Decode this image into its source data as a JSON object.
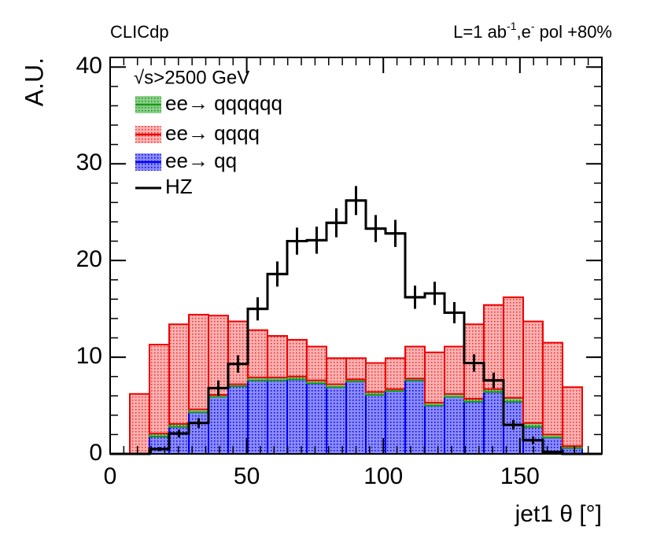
{
  "chart_data": {
    "type": "stacked_histogram",
    "top_left_label": "CLICdp",
    "top_right_label": [
      "L=1 ab",
      "-1",
      ",e",
      "-",
      " pol +80%"
    ],
    "legend_header": "√s>2500 GeV",
    "x_label": "jet1 θ [°]",
    "y_label": "A.U.",
    "bins": [
      0,
      7.2,
      14.4,
      21.6,
      28.8,
      36,
      43.2,
      50.4,
      57.6,
      64.8,
      72,
      79.2,
      86.4,
      93.6,
      100.8,
      108,
      115.2,
      122.4,
      129.6,
      136.8,
      144,
      151.2,
      158.4,
      165.6,
      172.8,
      180
    ],
    "series": [
      {
        "name": "ee→ qq",
        "color": "#0000ee",
        "fill": "#7a7aff",
        "values": [
          0,
          0,
          1.8,
          2.8,
          4.3,
          5.9,
          7.0,
          7.6,
          7.6,
          7.7,
          7.3,
          6.9,
          7.5,
          6.1,
          6.5,
          7.6,
          5.0,
          5.9,
          5.4,
          6.4,
          5.4,
          2.8,
          1.7,
          0.6,
          0
        ]
      },
      {
        "name": "ee→ qqqqqq",
        "color": "#1a9a1a",
        "fill": "#7acc7a",
        "values": [
          0,
          0,
          0.3,
          0.3,
          0.3,
          0.2,
          0.2,
          0.3,
          0.3,
          0.3,
          0.3,
          0.3,
          0.2,
          0.3,
          0.2,
          0.2,
          0.3,
          0.3,
          0.3,
          0.3,
          0.4,
          0.4,
          0.3,
          0.2,
          0
        ]
      },
      {
        "name": "ee→ qqqq",
        "color": "#ee0000",
        "fill": "#ff9a9a",
        "values": [
          0,
          6.2,
          9.2,
          10.3,
          9.8,
          8.2,
          6.5,
          4.9,
          4.3,
          3.8,
          3.5,
          2.7,
          2.2,
          3.0,
          3.2,
          3.3,
          5.2,
          4.9,
          7.7,
          8.7,
          10.4,
          10.5,
          9.5,
          6.1,
          0
        ]
      }
    ],
    "overlay": {
      "name": "HZ",
      "color": "#000000",
      "values": [
        0,
        0,
        0.5,
        2.1,
        3.2,
        6.8,
        9.3,
        15.0,
        18.6,
        22.0,
        22.1,
        23.9,
        26.2,
        23.3,
        22.8,
        16.2,
        16.6,
        14.6,
        9.4,
        7.6,
        3.0,
        1.4,
        0.2,
        0,
        0
      ],
      "errors": [
        0,
        0,
        0.2,
        0.4,
        0.5,
        0.8,
        0.9,
        1.2,
        1.3,
        1.4,
        1.4,
        1.5,
        1.5,
        1.4,
        1.4,
        1.2,
        1.2,
        1.1,
        0.9,
        0.8,
        0.5,
        0.4,
        0.1,
        0,
        0
      ]
    },
    "legend_order": [
      1,
      2,
      0
    ],
    "xlim": [
      0,
      180
    ],
    "ylim": [
      0,
      41
    ],
    "xticks": [
      0,
      50,
      100,
      150
    ],
    "yticks": [
      0,
      10,
      20,
      30,
      40
    ]
  }
}
